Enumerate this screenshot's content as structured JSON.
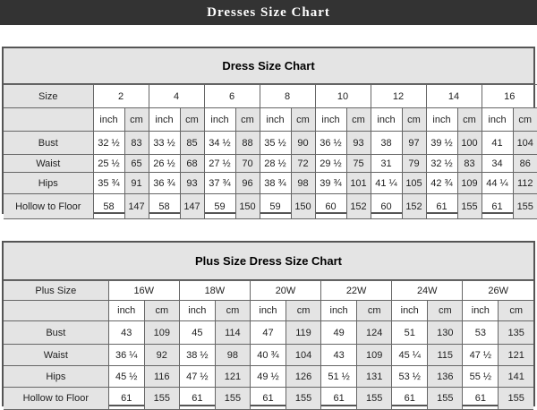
{
  "header": {
    "title": "Dresses Size Chart"
  },
  "tables": [
    {
      "title": "Dress Size Chart",
      "size_label": "Size",
      "sizes": [
        "2",
        "4",
        "6",
        "8",
        "10",
        "12",
        "14",
        "16"
      ],
      "unit_inch": "inch",
      "unit_cm": "cm",
      "rows": [
        {
          "label": "Bust",
          "values": [
            "32 ½",
            "83",
            "33 ½",
            "85",
            "34 ½",
            "88",
            "35 ½",
            "90",
            "36 ½",
            "93",
            "38",
            "97",
            "39 ½",
            "100",
            "41",
            "104"
          ]
        },
        {
          "label": "Waist",
          "values": [
            "25 ½",
            "65",
            "26 ½",
            "68",
            "27 ½",
            "70",
            "28 ½",
            "72",
            "29 ½",
            "75",
            "31",
            "79",
            "32 ½",
            "83",
            "34",
            "86"
          ]
        },
        {
          "label": "Hips",
          "values": [
            "35 ¾",
            "91",
            "36 ¾",
            "93",
            "37 ¾",
            "96",
            "38 ¾",
            "98",
            "39 ¾",
            "101",
            "41 ¼",
            "105",
            "42 ¾",
            "109",
            "44 ¼",
            "112"
          ]
        },
        {
          "label": "Hollow to Floor",
          "values": [
            "58",
            "147",
            "58",
            "147",
            "59",
            "150",
            "59",
            "150",
            "60",
            "152",
            "60",
            "152",
            "61",
            "155",
            "61",
            "155"
          ]
        }
      ]
    },
    {
      "title": "Plus Size Dress Size Chart",
      "size_label": "Plus Size",
      "sizes": [
        "16W",
        "18W",
        "20W",
        "22W",
        "24W",
        "26W"
      ],
      "unit_inch": "inch",
      "unit_cm": "cm",
      "rows": [
        {
          "label": "Bust",
          "values": [
            "43",
            "109",
            "45",
            "114",
            "47",
            "119",
            "49",
            "124",
            "51",
            "130",
            "53",
            "135"
          ]
        },
        {
          "label": "Waist",
          "values": [
            "36 ¼",
            "92",
            "38 ½",
            "98",
            "40 ¾",
            "104",
            "43",
            "109",
            "45 ¼",
            "115",
            "47 ½",
            "121"
          ]
        },
        {
          "label": "Hips",
          "values": [
            "45 ½",
            "116",
            "47 ½",
            "121",
            "49 ½",
            "126",
            "51 ½",
            "131",
            "53 ½",
            "136",
            "55 ½",
            "141"
          ]
        },
        {
          "label": "Hollow to Floor",
          "values": [
            "61",
            "155",
            "61",
            "155",
            "61",
            "155",
            "61",
            "155",
            "61",
            "155",
            "61",
            "155"
          ]
        }
      ]
    }
  ]
}
